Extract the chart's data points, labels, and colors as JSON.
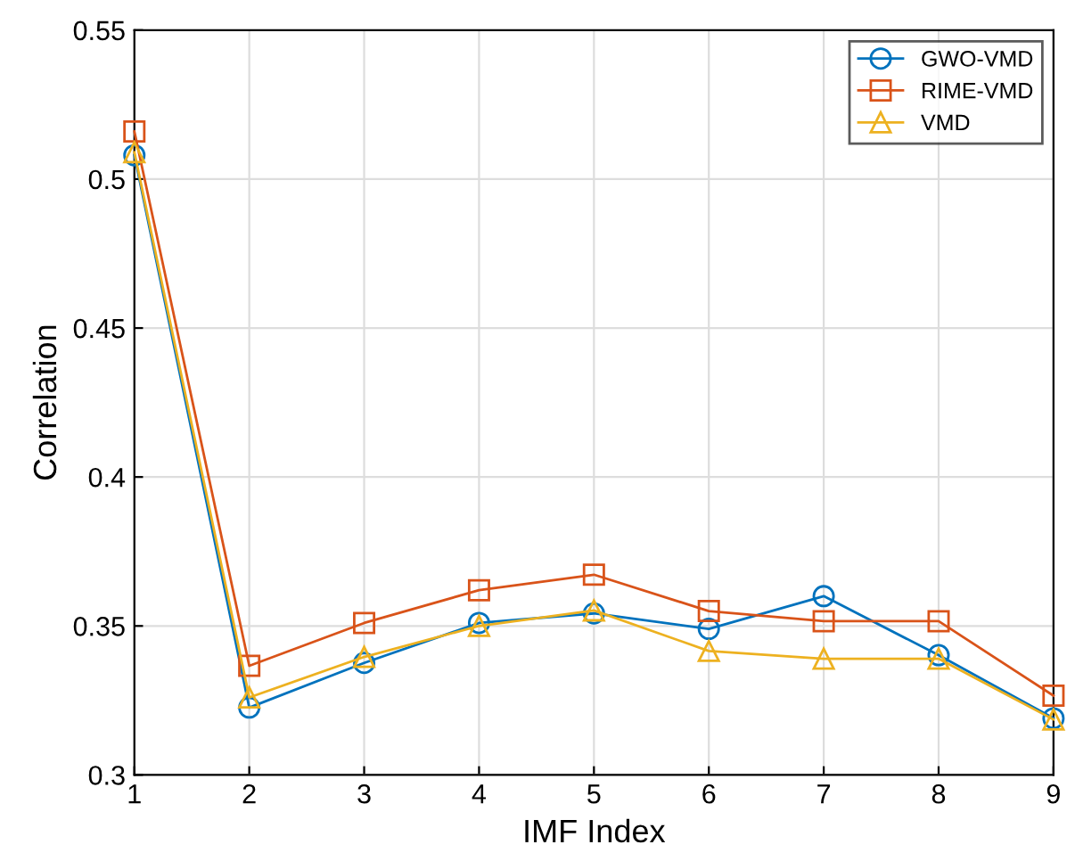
{
  "chart_data": {
    "type": "line",
    "xlabel": "IMF Index",
    "ylabel": "Correlation",
    "x": [
      1,
      2,
      3,
      4,
      5,
      6,
      7,
      8,
      9
    ],
    "series": [
      {
        "name": "GWO-VMD",
        "color": "#0072bd",
        "marker": "circle",
        "values": [
          0.508,
          0.3226,
          0.3376,
          0.351,
          0.3542,
          0.349,
          0.36,
          0.3402,
          0.319
        ]
      },
      {
        "name": "RIME-VMD",
        "color": "#d95319",
        "marker": "square",
        "values": [
          0.516,
          0.3366,
          0.351,
          0.362,
          0.3672,
          0.355,
          0.3516,
          0.3516,
          0.3266
        ]
      },
      {
        "name": "VMD",
        "color": "#edb120",
        "marker": "triangle",
        "values": [
          0.509,
          0.326,
          0.3396,
          0.35,
          0.3552,
          0.3416,
          0.339,
          0.339,
          0.3186
        ]
      }
    ],
    "xlim": [
      1,
      9
    ],
    "xticks": [
      1,
      2,
      3,
      4,
      5,
      6,
      7,
      8,
      9
    ],
    "ylim": [
      0.3,
      0.55
    ],
    "yticks": [
      0.3,
      0.35,
      0.4,
      0.45,
      0.5,
      0.55
    ],
    "grid": true,
    "legend": "top right",
    "line_style": "solid"
  }
}
